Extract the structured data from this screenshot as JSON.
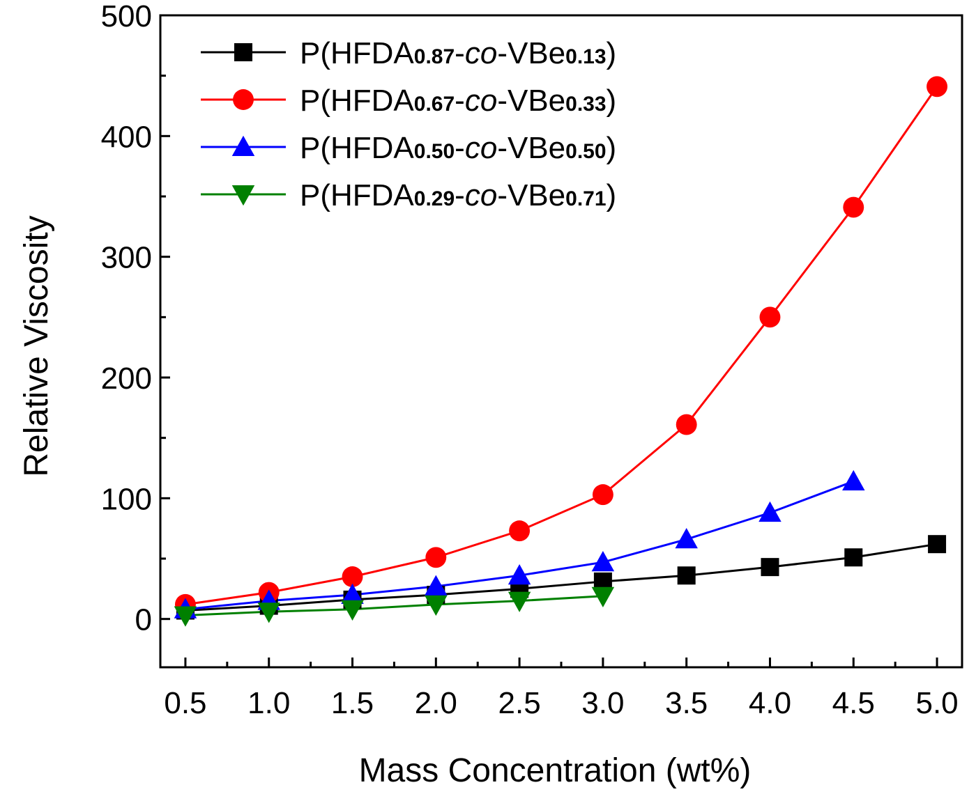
{
  "chart_data": {
    "type": "line",
    "title": "",
    "xlabel": "Mass Concentration (wt%)",
    "ylabel": "Relative Viscosity",
    "xlim": [
      0.35,
      5.15
    ],
    "ylim": [
      -40,
      500
    ],
    "xticks": [
      "0.5",
      "1.0",
      "1.5",
      "2.0",
      "2.5",
      "3.0",
      "3.5",
      "4.0",
      "4.5",
      "5.0"
    ],
    "yticks": [
      "0",
      "100",
      "200",
      "300",
      "400",
      "500"
    ],
    "legend_position": "top-left",
    "series": [
      {
        "name": "P(HFDA0.87-co-VBe0.13)",
        "label_parts": [
          "P(HFDA",
          "0.87",
          "-",
          "co",
          "-VBe",
          "0.13",
          ")"
        ],
        "color": "#000000",
        "marker": "square",
        "x": [
          0.5,
          1.0,
          1.5,
          2.0,
          2.5,
          3.0,
          3.5,
          4.0,
          4.5,
          5.0
        ],
        "y": [
          7,
          11,
          16,
          20,
          25,
          31,
          36,
          43,
          51,
          62
        ]
      },
      {
        "name": "P(HFDA0.67-co-VBe0.33)",
        "label_parts": [
          "P(HFDA",
          "0.67",
          "-",
          "co",
          "-VBe",
          "0.33",
          ")"
        ],
        "color": "#ff0000",
        "marker": "circle",
        "x": [
          0.5,
          1.0,
          1.5,
          2.0,
          2.5,
          3.0,
          3.5,
          4.0,
          4.5,
          5.0
        ],
        "y": [
          12,
          22,
          35,
          51,
          73,
          103,
          161,
          250,
          341,
          441
        ]
      },
      {
        "name": "P(HFDA0.50-co-VBe0.50)",
        "label_parts": [
          "P(HFDA",
          "0.50",
          "-",
          "co",
          "-VBe",
          "0.50",
          ")"
        ],
        "color": "#0000ff",
        "marker": "triangle-up",
        "x": [
          0.5,
          1.0,
          1.5,
          2.0,
          2.5,
          3.0,
          3.5,
          4.0,
          4.5
        ],
        "y": [
          8,
          15,
          20,
          27,
          36,
          47,
          66,
          88,
          114
        ]
      },
      {
        "name": "P(HFDA0.29-co-VBe0.71)",
        "label_parts": [
          "P(HFDA",
          "0.29",
          "-",
          "co",
          "-VBe",
          "0.71",
          ")"
        ],
        "color": "#008000",
        "marker": "triangle-down",
        "x": [
          0.5,
          1.0,
          1.5,
          2.0,
          2.5,
          3.0
        ],
        "y": [
          3,
          6,
          8,
          12,
          15,
          19
        ]
      }
    ]
  }
}
